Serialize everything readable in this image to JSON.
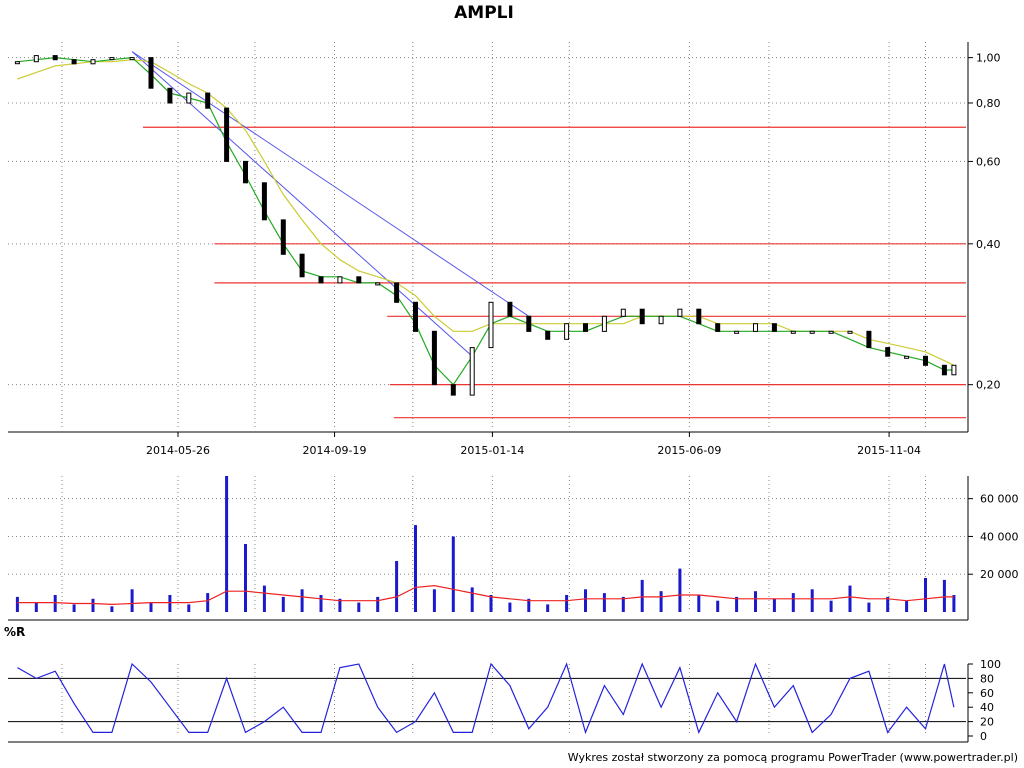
{
  "title": "AMPLI",
  "footer": "Wykres został stworzony za pomocą programu PowerTrader (www.powertrader.pl)",
  "colors": {
    "background": "#ffffff",
    "candle": "#000000",
    "ma_short": "#22aa22",
    "ma_long": "#cccc33",
    "trendline": "#5555ee",
    "support_resistance": "#ee3333",
    "volume_bar": "#1a1acc",
    "volume_ma": "#ee2222",
    "williams_r": "#2222dd",
    "grid": "#888888"
  },
  "chart_data": [
    {
      "type": "candlestick",
      "panel": "price",
      "title": "AMPLI",
      "x_tick_labels": [
        "2014-05-26",
        "2014-09-19",
        "2015-01-14",
        "2015-06-09",
        "2015-11-04"
      ],
      "y_tick_labels": [
        "1,00",
        "0,80",
        "0,60",
        "0,40",
        "0,20"
      ],
      "y_scale": "log",
      "ylim": [
        0.16,
        1.08
      ],
      "grid": true,
      "series": [
        {
          "label": "close",
          "x": [
            "2014-01-27",
            "2014-02-10",
            "2014-02-24",
            "2014-03-10",
            "2014-03-24",
            "2014-04-07",
            "2014-04-22",
            "2014-05-06",
            "2014-05-20",
            "2014-06-03",
            "2014-06-17",
            "2014-07-01",
            "2014-07-15",
            "2014-07-29",
            "2014-08-12",
            "2014-08-26",
            "2014-09-09",
            "2014-09-23",
            "2014-10-07",
            "2014-10-21",
            "2014-11-04",
            "2014-11-18",
            "2014-12-02",
            "2014-12-16",
            "2014-12-30",
            "2015-01-13",
            "2015-01-27",
            "2015-02-10",
            "2015-02-24",
            "2015-03-10",
            "2015-03-24",
            "2015-04-07",
            "2015-04-21",
            "2015-05-05",
            "2015-05-19",
            "2015-06-02",
            "2015-06-16",
            "2015-06-30",
            "2015-07-14",
            "2015-07-28",
            "2015-08-11",
            "2015-08-25",
            "2015-09-08",
            "2015-09-22",
            "2015-10-06",
            "2015-10-20",
            "2015-11-03",
            "2015-11-17",
            "2015-12-01",
            "2015-12-15",
            "2015-12-22"
          ],
          "values": [
            0.98,
            1.01,
            0.99,
            0.97,
            0.99,
            1.0,
            1.0,
            0.86,
            0.8,
            0.84,
            0.78,
            0.6,
            0.54,
            0.45,
            0.38,
            0.34,
            0.33,
            0.34,
            0.33,
            0.33,
            0.3,
            0.26,
            0.2,
            0.19,
            0.24,
            0.3,
            0.28,
            0.26,
            0.25,
            0.27,
            0.26,
            0.28,
            0.29,
            0.27,
            0.28,
            0.29,
            0.27,
            0.26,
            0.26,
            0.27,
            0.26,
            0.26,
            0.26,
            0.26,
            0.26,
            0.24,
            0.23,
            0.23,
            0.22,
            0.21,
            0.22
          ]
        },
        {
          "label": "ma_short",
          "x": [
            "2014-01-27",
            "2014-02-10",
            "2014-02-24",
            "2014-03-10",
            "2014-03-24",
            "2014-04-07",
            "2014-04-22",
            "2014-05-06",
            "2014-05-20",
            "2014-06-03",
            "2014-06-17",
            "2014-07-01",
            "2014-07-15",
            "2014-07-29",
            "2014-08-12",
            "2014-08-26",
            "2014-09-09",
            "2014-09-23",
            "2014-10-07",
            "2014-10-21",
            "2014-11-04",
            "2014-11-18",
            "2014-12-02",
            "2014-12-16",
            "2014-12-30",
            "2015-01-13",
            "2015-01-27",
            "2015-02-10",
            "2015-02-24",
            "2015-03-10",
            "2015-03-24",
            "2015-04-07",
            "2015-04-21",
            "2015-05-05",
            "2015-05-19",
            "2015-06-02",
            "2015-06-16",
            "2015-06-30",
            "2015-07-14",
            "2015-07-28",
            "2015-08-11",
            "2015-08-25",
            "2015-09-08",
            "2015-09-22",
            "2015-10-06",
            "2015-10-20",
            "2015-11-03",
            "2015-11-17",
            "2015-12-01",
            "2015-12-15",
            "2015-12-22"
          ],
          "values": [
            0.98,
            0.99,
            1.0,
            0.99,
            0.98,
            0.99,
            1.0,
            0.92,
            0.84,
            0.82,
            0.8,
            0.66,
            0.56,
            0.47,
            0.4,
            0.35,
            0.34,
            0.34,
            0.33,
            0.33,
            0.31,
            0.27,
            0.22,
            0.2,
            0.23,
            0.27,
            0.28,
            0.27,
            0.26,
            0.26,
            0.26,
            0.27,
            0.28,
            0.28,
            0.28,
            0.28,
            0.27,
            0.26,
            0.26,
            0.26,
            0.26,
            0.26,
            0.26,
            0.26,
            0.25,
            0.24,
            0.235,
            0.23,
            0.225,
            0.215,
            0.215
          ]
        },
        {
          "label": "ma_long",
          "x": [
            "2014-01-27",
            "2014-02-10",
            "2014-02-24",
            "2014-03-10",
            "2014-03-24",
            "2014-04-07",
            "2014-04-22",
            "2014-05-06",
            "2014-05-20",
            "2014-06-03",
            "2014-06-17",
            "2014-07-01",
            "2014-07-15",
            "2014-07-29",
            "2014-08-12",
            "2014-08-26",
            "2014-09-09",
            "2014-09-23",
            "2014-10-07",
            "2014-10-21",
            "2014-11-04",
            "2014-11-18",
            "2014-12-02",
            "2014-12-16",
            "2014-12-30",
            "2015-01-13",
            "2015-01-27",
            "2015-02-10",
            "2015-02-24",
            "2015-03-10",
            "2015-03-24",
            "2015-04-07",
            "2015-04-21",
            "2015-05-05",
            "2015-05-19",
            "2015-06-02",
            "2015-06-16",
            "2015-06-30",
            "2015-07-14",
            "2015-07-28",
            "2015-08-11",
            "2015-08-25",
            "2015-09-08",
            "2015-09-22",
            "2015-10-06",
            "2015-10-20",
            "2015-11-03",
            "2015-11-17",
            "2015-12-01",
            "2015-12-15",
            "2015-12-22"
          ],
          "values": [
            0.9,
            0.93,
            0.96,
            0.97,
            0.98,
            0.98,
            0.99,
            0.98,
            0.93,
            0.88,
            0.84,
            0.78,
            0.7,
            0.6,
            0.51,
            0.45,
            0.4,
            0.37,
            0.35,
            0.34,
            0.33,
            0.31,
            0.28,
            0.26,
            0.26,
            0.27,
            0.27,
            0.27,
            0.27,
            0.27,
            0.27,
            0.27,
            0.27,
            0.28,
            0.28,
            0.28,
            0.28,
            0.27,
            0.27,
            0.27,
            0.27,
            0.26,
            0.26,
            0.26,
            0.26,
            0.25,
            0.245,
            0.24,
            0.235,
            0.225,
            0.22
          ]
        }
      ],
      "trendlines": [
        {
          "x": [
            "2014-04-22",
            "2014-12-30"
          ],
          "y": [
            1.03,
            0.23
          ]
        },
        {
          "x": [
            "2014-04-22",
            "2015-02-10"
          ],
          "y": [
            1.03,
            0.28
          ]
        }
      ],
      "horizontal_levels": [
        0.71,
        0.4,
        0.33,
        0.28,
        0.2,
        0.17
      ]
    },
    {
      "type": "bar",
      "panel": "volume",
      "y_tick_labels": [
        "60 000",
        "40 000",
        "20 000"
      ],
      "ylim": [
        0,
        72000
      ],
      "grid": true,
      "series": [
        {
          "label": "volume",
          "x": [
            "2014-01-27",
            "2014-02-10",
            "2014-02-24",
            "2014-03-10",
            "2014-03-24",
            "2014-04-07",
            "2014-04-22",
            "2014-05-06",
            "2014-05-20",
            "2014-06-03",
            "2014-06-17",
            "2014-07-01",
            "2014-07-15",
            "2014-07-29",
            "2014-08-12",
            "2014-08-26",
            "2014-09-09",
            "2014-09-23",
            "2014-10-07",
            "2014-10-21",
            "2014-11-04",
            "2014-11-18",
            "2014-12-02",
            "2014-12-16",
            "2014-12-30",
            "2015-01-13",
            "2015-01-27",
            "2015-02-10",
            "2015-02-24",
            "2015-03-10",
            "2015-03-24",
            "2015-04-07",
            "2015-04-21",
            "2015-05-05",
            "2015-05-19",
            "2015-06-02",
            "2015-06-16",
            "2015-06-30",
            "2015-07-14",
            "2015-07-28",
            "2015-08-11",
            "2015-08-25",
            "2015-09-08",
            "2015-09-22",
            "2015-10-06",
            "2015-10-20",
            "2015-11-03",
            "2015-11-17",
            "2015-12-01",
            "2015-12-15",
            "2015-12-22"
          ],
          "values": [
            8000,
            5000,
            9000,
            4000,
            7000,
            3000,
            12000,
            5000,
            9000,
            4000,
            10000,
            72000,
            36000,
            14000,
            8000,
            12000,
            9000,
            7000,
            5000,
            8000,
            27000,
            46000,
            12000,
            40000,
            13000,
            9000,
            5000,
            7000,
            4000,
            9000,
            12000,
            10000,
            8000,
            17000,
            11000,
            23000,
            9000,
            6000,
            8000,
            11000,
            7000,
            10000,
            12000,
            6000,
            14000,
            5000,
            8000,
            6000,
            18000,
            17000,
            9000
          ]
        },
        {
          "label": "volume_ma",
          "x": [
            "2014-01-27",
            "2014-02-10",
            "2014-02-24",
            "2014-03-10",
            "2014-03-24",
            "2014-04-07",
            "2014-04-22",
            "2014-05-06",
            "2014-05-20",
            "2014-06-03",
            "2014-06-17",
            "2014-07-01",
            "2014-07-15",
            "2014-07-29",
            "2014-08-12",
            "2014-08-26",
            "2014-09-09",
            "2014-09-23",
            "2014-10-07",
            "2014-10-21",
            "2014-11-04",
            "2014-11-18",
            "2014-12-02",
            "2014-12-16",
            "2014-12-30",
            "2015-01-13",
            "2015-01-27",
            "2015-02-10",
            "2015-02-24",
            "2015-03-10",
            "2015-03-24",
            "2015-04-07",
            "2015-04-21",
            "2015-05-05",
            "2015-05-19",
            "2015-06-02",
            "2015-06-16",
            "2015-06-30",
            "2015-07-14",
            "2015-07-28",
            "2015-08-11",
            "2015-08-25",
            "2015-09-08",
            "2015-09-22",
            "2015-10-06",
            "2015-10-20",
            "2015-11-03",
            "2015-11-17",
            "2015-12-01",
            "2015-12-15",
            "2015-12-22"
          ],
          "values": [
            5000,
            5000,
            5000,
            4500,
            4500,
            4000,
            4500,
            5000,
            5000,
            5000,
            6000,
            11000,
            11000,
            10000,
            9000,
            8000,
            7000,
            6000,
            6000,
            6000,
            8000,
            13000,
            14000,
            12000,
            10000,
            8000,
            7000,
            6000,
            6000,
            6000,
            7000,
            7000,
            7000,
            8000,
            8000,
            9000,
            9000,
            8000,
            7000,
            7000,
            7000,
            7000,
            7000,
            7000,
            8000,
            7000,
            7000,
            6000,
            7000,
            8000,
            8000
          ]
        }
      ]
    },
    {
      "type": "line",
      "panel": "williams_r",
      "title": "%R",
      "y_tick_labels": [
        "100",
        "80",
        "60",
        "40",
        "20",
        "0"
      ],
      "ylim": [
        0,
        100
      ],
      "reference_levels": [
        80,
        20
      ],
      "series": [
        {
          "label": "%R",
          "x": [
            "2014-01-27",
            "2014-02-10",
            "2014-02-24",
            "2014-03-10",
            "2014-03-24",
            "2014-04-07",
            "2014-04-22",
            "2014-05-06",
            "2014-05-20",
            "2014-06-03",
            "2014-06-17",
            "2014-07-01",
            "2014-07-15",
            "2014-07-29",
            "2014-08-12",
            "2014-08-26",
            "2014-09-09",
            "2014-09-23",
            "2014-10-07",
            "2014-10-21",
            "2014-11-04",
            "2014-11-18",
            "2014-12-02",
            "2014-12-16",
            "2014-12-30",
            "2015-01-13",
            "2015-01-27",
            "2015-02-10",
            "2015-02-24",
            "2015-03-10",
            "2015-03-24",
            "2015-04-07",
            "2015-04-21",
            "2015-05-05",
            "2015-05-19",
            "2015-06-02",
            "2015-06-16",
            "2015-06-30",
            "2015-07-14",
            "2015-07-28",
            "2015-08-11",
            "2015-08-25",
            "2015-09-08",
            "2015-09-22",
            "2015-10-06",
            "2015-10-20",
            "2015-11-03",
            "2015-11-17",
            "2015-12-01",
            "2015-12-15",
            "2015-12-22"
          ],
          "values": [
            95,
            80,
            90,
            45,
            5,
            5,
            100,
            75,
            40,
            5,
            5,
            80,
            5,
            20,
            40,
            5,
            5,
            95,
            100,
            40,
            5,
            20,
            60,
            5,
            5,
            100,
            70,
            10,
            40,
            100,
            5,
            70,
            30,
            100,
            40,
            95,
            5,
            60,
            20,
            100,
            40,
            70,
            5,
            30,
            80,
            90,
            5,
            40,
            10,
            100,
            40
          ]
        }
      ]
    }
  ]
}
